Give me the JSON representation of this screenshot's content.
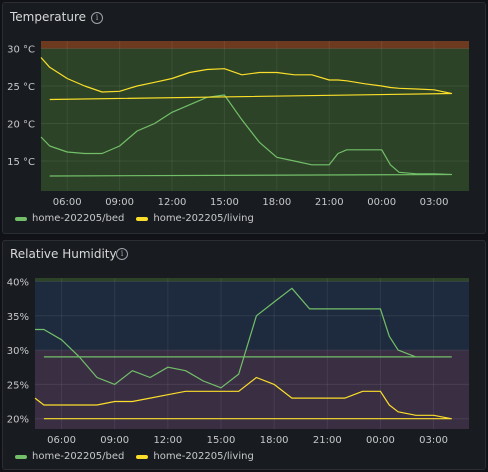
{
  "temperature": {
    "title": "Temperature",
    "info_glyph": "i",
    "y_ticks": [
      "30 °C",
      "25 °C",
      "20 °C",
      "15 °C"
    ],
    "x_ticks": [
      "06:00",
      "09:00",
      "12:00",
      "15:00",
      "18:00",
      "21:00",
      "00:00",
      "03:00"
    ],
    "legend": [
      {
        "label": "home-202205/bed",
        "color": "#73bf69"
      },
      {
        "label": "home-202205/living",
        "color": "#fade2a"
      }
    ]
  },
  "humidity": {
    "title": "Relative Humidity",
    "info_glyph": "i",
    "y_ticks": [
      "40%",
      "35%",
      "30%",
      "25%",
      "20%"
    ],
    "x_ticks": [
      "06:00",
      "09:00",
      "12:00",
      "15:00",
      "18:00",
      "21:00",
      "00:00",
      "03:00"
    ],
    "legend": [
      {
        "label": "home-202205/bed",
        "color": "#73bf69"
      },
      {
        "label": "home-202205/living",
        "color": "#fade2a"
      }
    ]
  },
  "chart_data": [
    {
      "type": "line",
      "title": "Temperature",
      "x": [
        "04:30",
        "05:00",
        "06:00",
        "07:00",
        "08:00",
        "09:00",
        "10:00",
        "11:00",
        "12:00",
        "13:00",
        "14:00",
        "15:00",
        "16:00",
        "17:00",
        "18:00",
        "19:00",
        "20:00",
        "21:00",
        "21:30",
        "22:00",
        "23:00",
        "00:00",
        "00:30",
        "01:00",
        "02:00",
        "03:00",
        "04:00",
        "05:00"
      ],
      "series": [
        {
          "name": "home-202205/bed",
          "color": "#73bf69",
          "values": [
            18.2,
            17.0,
            16.2,
            16.0,
            16.0,
            17.0,
            19.0,
            20.0,
            21.5,
            22.5,
            23.5,
            23.8,
            20.5,
            17.5,
            15.5,
            15.0,
            14.5,
            14.5,
            16.0,
            16.5,
            16.5,
            16.5,
            14.5,
            13.5,
            13.3,
            13.3,
            13.2,
            13.0
          ]
        },
        {
          "name": "home-202205/living",
          "color": "#fade2a",
          "values": [
            28.8,
            27.5,
            26.0,
            25.0,
            24.2,
            24.3,
            25.0,
            25.5,
            26.0,
            26.8,
            27.2,
            27.3,
            26.5,
            26.8,
            26.8,
            26.5,
            26.5,
            25.8,
            25.8,
            25.7,
            25.3,
            25.0,
            24.8,
            24.7,
            24.6,
            24.5,
            24.0,
            23.2
          ]
        }
      ],
      "ylim": [
        11,
        31
      ],
      "thresholds": [
        {
          "from": 30,
          "color": "#6e3a1f"
        },
        {
          "below": 30,
          "color": "#2c4327"
        }
      ],
      "grid": true,
      "legend_position": "bottom-left"
    },
    {
      "type": "line",
      "title": "Relative Humidity",
      "x": [
        "04:30",
        "05:00",
        "06:00",
        "07:00",
        "08:00",
        "09:00",
        "10:00",
        "11:00",
        "12:00",
        "13:00",
        "14:00",
        "15:00",
        "16:00",
        "17:00",
        "18:00",
        "19:00",
        "20:00",
        "21:00",
        "22:00",
        "23:00",
        "00:00",
        "00:30",
        "01:00",
        "02:00",
        "03:00",
        "04:00",
        "05:00"
      ],
      "series": [
        {
          "name": "home-202205/bed",
          "color": "#73bf69",
          "values": [
            33,
            33,
            31.5,
            29,
            26,
            25,
            27,
            26,
            27.5,
            27,
            25.5,
            24.5,
            26.5,
            35,
            37,
            39,
            36,
            36,
            36,
            36,
            36,
            32,
            30,
            29,
            29,
            29,
            29
          ]
        },
        {
          "name": "home-202205/living",
          "color": "#fade2a",
          "values": [
            23,
            22,
            22,
            22,
            22,
            22.5,
            22.5,
            23,
            23.5,
            24,
            24,
            24,
            24,
            26,
            25,
            23,
            23,
            23,
            23,
            24,
            24,
            22,
            21,
            20.5,
            20.5,
            20,
            20
          ]
        }
      ],
      "ylim": [
        18.5,
        40.5
      ],
      "thresholds": [
        {
          "from": 40,
          "color": "#2c4327"
        },
        {
          "from": 30,
          "color": "#1e2b3e"
        },
        {
          "from": 25,
          "color": "#3a2e43"
        },
        {
          "below": 25,
          "color": "#3a2e43"
        }
      ],
      "grid": true,
      "legend_position": "bottom-left"
    }
  ]
}
